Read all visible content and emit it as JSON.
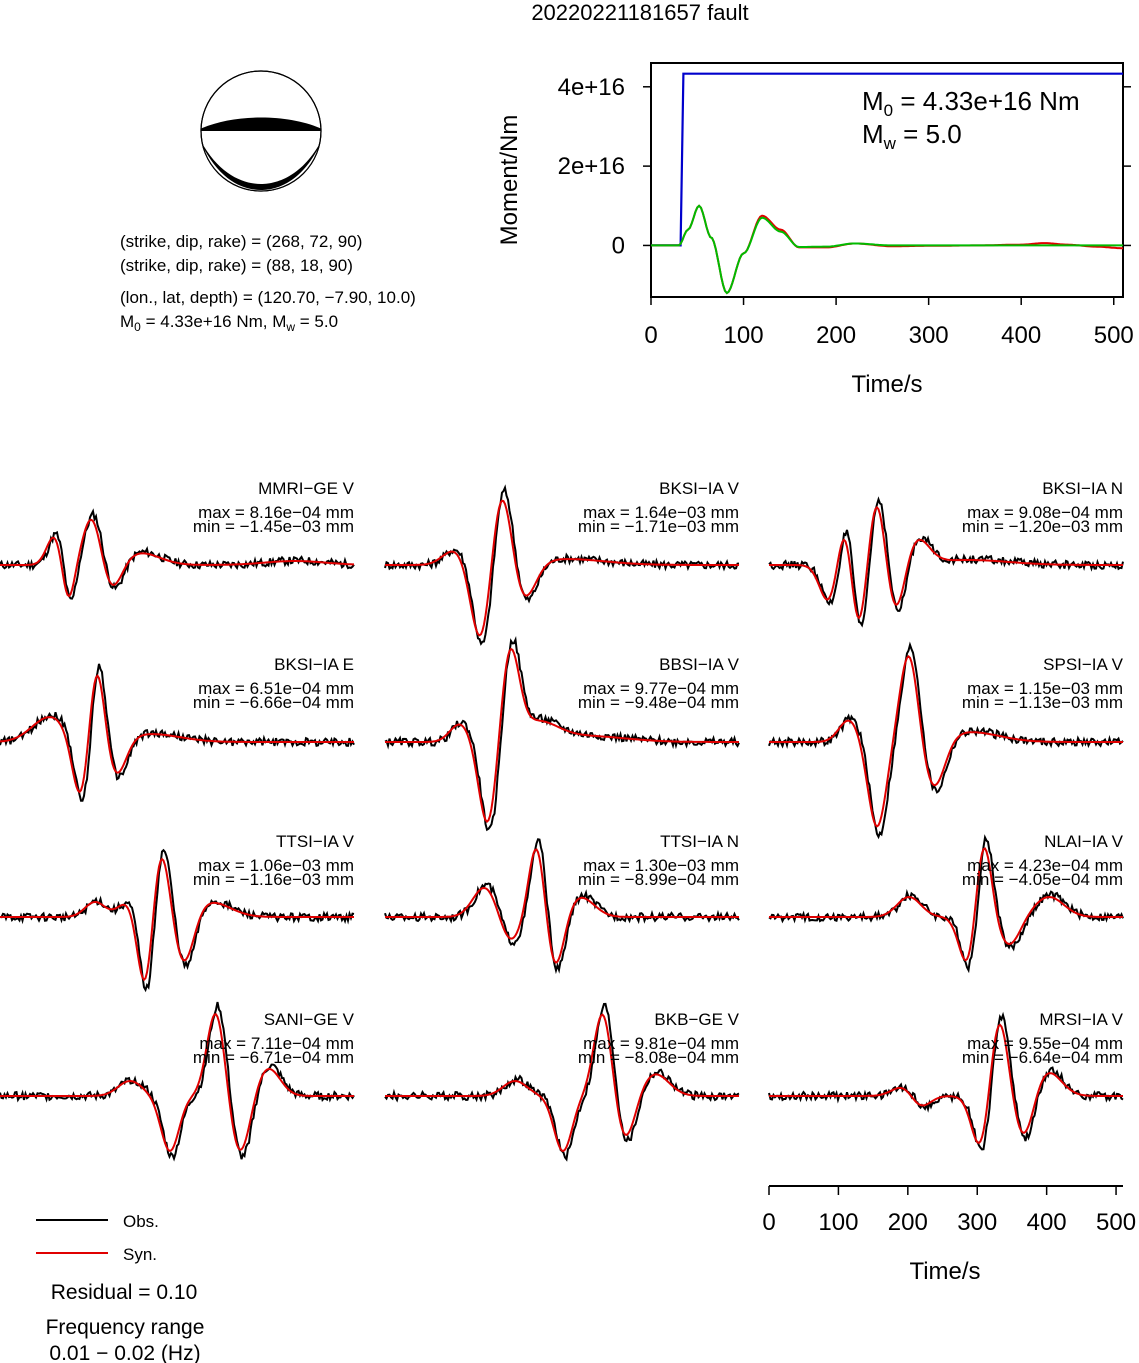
{
  "title": "20220221181657 fault",
  "mechanism": {
    "line1": "(strike, dip, rake) = (268, 72, 90)",
    "line2": "(strike, dip, rake) = (88, 18, 90)",
    "line3": "(lon., lat, depth) = (120.70, −7.90, 10.0)",
    "line4_pre": "M",
    "line4_sub": "0",
    "line4_mid": " = 4.33e+16 Nm, M",
    "line4_sub2": "w",
    "line4_post": " = 5.0"
  },
  "moment_plot": {
    "ylabel": "Moment/Nm",
    "xlabel": "Time/s",
    "m0_pre": "M",
    "m0_sub": "0",
    "m0_post": " = 4.33e+16 Nm",
    "mw_pre": "M",
    "mw_sub": "w",
    "mw_post": " = 5.0",
    "yticks": [
      "0",
      "2e+16",
      "4e+16"
    ],
    "xticks": [
      "0",
      "100",
      "200",
      "300",
      "400",
      "500"
    ]
  },
  "legend": {
    "obs": "Obs.",
    "syn": "Syn.",
    "residual": "Residual = 0.10",
    "freq_title": "Frequency range",
    "freq_range": "0.01 − 0.02 (Hz)"
  },
  "time_axis": {
    "xlabel": "Time/s",
    "xticks": [
      "0",
      "100",
      "200",
      "300",
      "400",
      "500"
    ]
  },
  "stations": [
    {
      "name": "MMRI−GE V",
      "max": "max = 8.16e−04 mm",
      "min": "min = −1.45e−03 mm"
    },
    {
      "name": "BKSI−IA V",
      "max": "max = 1.64e−03 mm",
      "min": "min = −1.71e−03 mm"
    },
    {
      "name": "BKSI−IA N",
      "max": "max = 9.08e−04 mm",
      "min": "min = −1.20e−03 mm"
    },
    {
      "name": "BKSI−IA E",
      "max": "max = 6.51e−04 mm",
      "min": "min = −6.66e−04 mm"
    },
    {
      "name": "BBSI−IA V",
      "max": "max = 9.77e−04 mm",
      "min": "min = −9.48e−04 mm"
    },
    {
      "name": "SPSI−IA V",
      "max": "max = 1.15e−03 mm",
      "min": "min = −1.13e−03 mm"
    },
    {
      "name": "TTSI−IA V",
      "max": "max = 1.06e−03 mm",
      "min": "min = −1.16e−03 mm"
    },
    {
      "name": "TTSI−IA N",
      "max": "max = 1.30e−03 mm",
      "min": "min = −8.99e−04 mm"
    },
    {
      "name": "NLAI−IA V",
      "max": "max = 4.23e−04 mm",
      "min": "min = −4.05e−04 mm"
    },
    {
      "name": "SANI−GE V",
      "max": "max = 7.11e−04 mm",
      "min": "min = −6.71e−04 mm"
    },
    {
      "name": "BKB−GE V",
      "max": "max = 9.81e−04 mm",
      "min": "min = −8.08e−04 mm"
    },
    {
      "name": "MRSI−IA V",
      "max": "max = 9.55e−04 mm",
      "min": "min = −6.64e−04 mm"
    }
  ],
  "chart_data": {
    "type": "line",
    "title": "20220221181657 fault",
    "xlabel": "Time/s",
    "ylabel": "Moment/Nm",
    "xlim": [
      0,
      510
    ],
    "ylim": [
      -1.3e+16,
      4.6e+16
    ],
    "series": [
      {
        "name": "",
        "color": "#0000cc",
        "x": [
          0,
          32,
          35,
          510
        ],
        "y": [
          0,
          0,
          4.33e+16,
          4.33e+16
        ]
      },
      {
        "name": "",
        "color": "#e00000",
        "x": [
          0,
          30,
          40,
          52,
          65,
          82,
          100,
          120,
          140,
          160,
          190,
          220,
          260,
          300,
          350,
          400,
          425,
          450,
          480,
          510
        ],
        "y": [
          0,
          0,
          4000000000000000.0,
          1e+16,
          2000000000000000.0,
          -1.2e+16,
          -2000000000000000.0,
          7500000000000000.0,
          4000000000000000.0,
          -500000000000000.0,
          -500000000000000.0,
          500000000000000.0,
          -200000000000000.0,
          -100000000000000.0,
          0,
          200000000000000.0,
          600000000000000.0,
          200000000000000.0,
          -300000000000000.0,
          -700000000000000.0
        ]
      },
      {
        "name": "",
        "color": "#00bb00",
        "x": [
          0,
          30,
          40,
          52,
          65,
          82,
          100,
          120,
          140,
          160,
          190,
          220,
          260,
          300,
          350,
          400,
          425,
          450,
          480,
          510
        ],
        "y": [
          0,
          0,
          4000000000000000.0,
          1e+16,
          2000000000000000.0,
          -1.2e+16,
          -2000000000000000.0,
          7000000000000000.0,
          3500000000000000.0,
          -400000000000000.0,
          -300000000000000.0,
          500000000000000.0,
          0,
          0,
          0,
          0,
          0,
          0,
          0,
          0
        ]
      }
    ]
  }
}
